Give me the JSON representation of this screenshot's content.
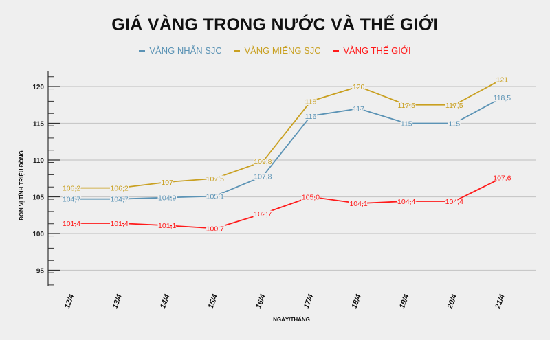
{
  "chart_data": {
    "type": "line",
    "title": "GIÁ VÀNG TRONG NƯỚC VÀ THẾ GIỚI",
    "xlabel": "NGÀY/THÁNG",
    "ylabel": "ĐƠN VỊ TÍNH TRIỆU ĐỒNG",
    "categories": [
      "12/4",
      "13/4",
      "14/4",
      "15/4",
      "16/4",
      "17/4",
      "18/4",
      "19/4",
      "20/4",
      "21/4"
    ],
    "ylim": [
      93,
      122
    ],
    "yticks": [
      95,
      100,
      105,
      110,
      115,
      120
    ],
    "grid": true,
    "legend_position": "top",
    "series": [
      {
        "name": "VÀNG NHẪN SJC",
        "color": "#5b93b5",
        "values": [
          104.7,
          104.7,
          104.9,
          105.1,
          107.8,
          116,
          117,
          115,
          115,
          118.5
        ],
        "labels": [
          "104,7",
          "104,7",
          "104,9",
          "105,1",
          "107,8",
          "116",
          "117",
          "115",
          "115",
          "118,5"
        ]
      },
      {
        "name": "VÀNG MIẾNG SJC",
        "color": "#c9a021",
        "values": [
          106.2,
          106.2,
          107,
          107.5,
          109.8,
          118,
          120,
          117.5,
          117.5,
          121
        ],
        "labels": [
          "106,2",
          "106,2",
          "107",
          "107,5",
          "109,8",
          "118",
          "120",
          "117,5",
          "117,5",
          "121"
        ]
      },
      {
        "name": "VÀNG THẾ GIỚI",
        "color": "#ff1a1a",
        "values": [
          101.4,
          101.4,
          101.1,
          100.7,
          102.7,
          105.0,
          104.1,
          104.4,
          104.4,
          107.6
        ],
        "labels": [
          "101,4",
          "101,4",
          "101,1",
          "100,7",
          "102,7",
          "105,0",
          "104,1",
          "104,4",
          "104,4",
          "107,6"
        ]
      }
    ]
  }
}
